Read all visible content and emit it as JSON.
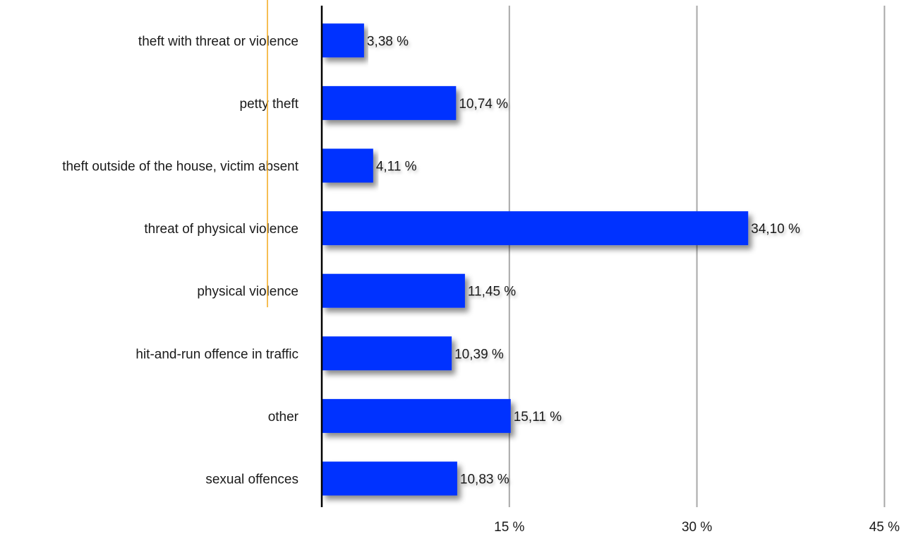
{
  "chart_data": {
    "type": "bar",
    "orientation": "horizontal",
    "categories": [
      "theft with threat or violence",
      "petty theft",
      "theft outside of the house, victim absent",
      "threat of physical violence",
      "physical violence",
      "hit-and-run offence in traffic",
      "other",
      "sexual offences"
    ],
    "values": [
      3.38,
      10.74,
      4.11,
      34.1,
      11.45,
      10.39,
      15.11,
      10.83
    ],
    "value_labels": [
      "3,38 %",
      "10,74 %",
      "4,11 %",
      "34,10 %",
      "11,45 %",
      "10,39 %",
      "15,11 %",
      "10,83 %"
    ],
    "xlim": [
      0,
      45
    ],
    "ticks": [
      15,
      30,
      45
    ],
    "tick_labels": [
      "15 %",
      "30 %",
      "45 %"
    ],
    "grid": "vertical",
    "bar_color": "#0433ff",
    "grid_color": "#a8a8a8",
    "axis_color": "#000000",
    "accent_line_color": "#f4a91c",
    "title": "",
    "xlabel": "",
    "ylabel": ""
  }
}
